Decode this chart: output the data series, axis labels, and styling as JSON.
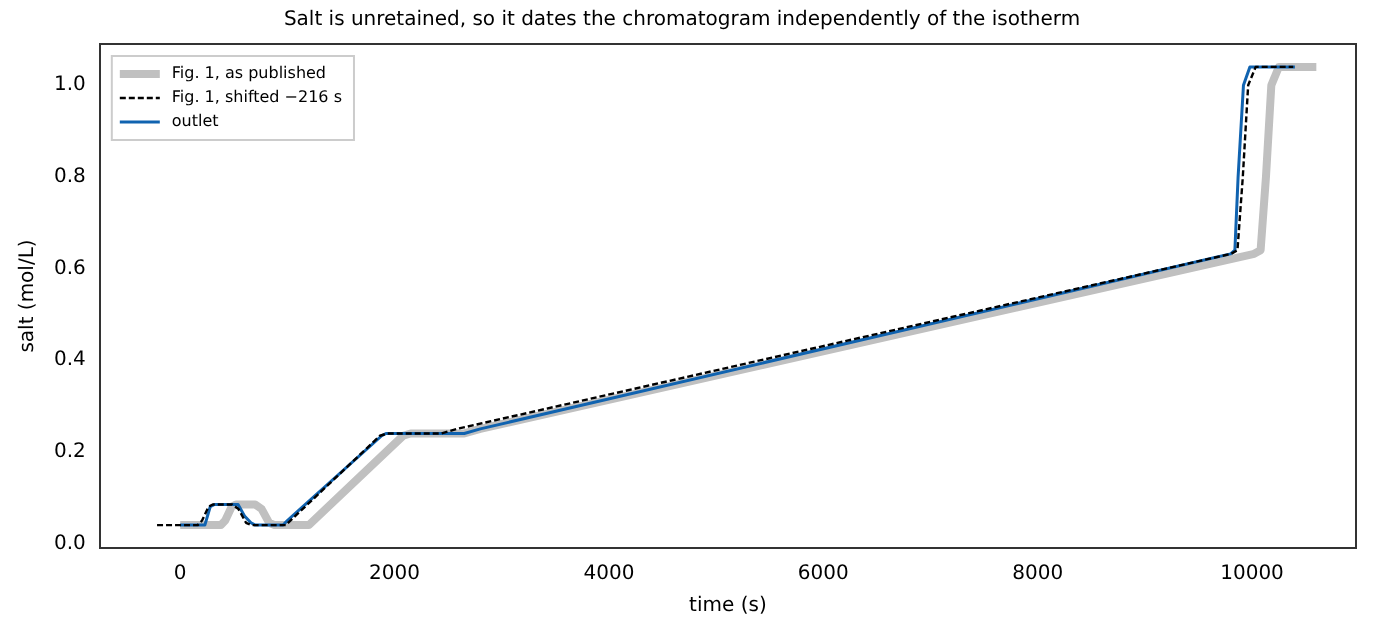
{
  "chart_data": {
    "type": "line",
    "title": "Salt is unretained, so it dates the chromatogram independently of the isotherm",
    "xlabel": "time (s)",
    "ylabel": "salt (mol/L)",
    "xlim": [
      -750,
      10970
    ],
    "xticks": [
      0,
      2000,
      4000,
      6000,
      8000,
      10000
    ],
    "ylim": [
      -0.01,
      1.09
    ],
    "yticks": [
      {
        "value": 0,
        "label": "0.0"
      },
      {
        "value": 0.2,
        "label": "0.2"
      },
      {
        "value": 0.4,
        "label": "0.4"
      },
      {
        "value": 0.6,
        "label": "0.6"
      },
      {
        "value": 0.8,
        "label": "0.8"
      },
      {
        "value": 1,
        "label": "1.0"
      }
    ],
    "grid": false,
    "legend": "top left",
    "marker": "none",
    "series": [
      {
        "name": "Fig. 1, as published",
        "color": "#c0c0c0",
        "line_style": "solid",
        "x": [
          0,
          380,
          420,
          480,
          520,
          700,
          760,
          830,
          880,
          1200,
          2080,
          2150,
          2650,
          2800,
          10020,
          10080,
          10130,
          10180,
          10250,
          10600
        ],
        "values": [
          0.04,
          0.04,
          0.05,
          0.08,
          0.085,
          0.085,
          0.075,
          0.045,
          0.04,
          0.04,
          0.235,
          0.24,
          0.24,
          0.25,
          0.632,
          0.64,
          0.8,
          1.0,
          1.04,
          1.04
        ]
      },
      {
        "name": "Fig. 1, shifted −216 s",
        "color": "#000000",
        "line_style": "dashed",
        "x": [
          -216,
          164,
          204,
          264,
          304,
          484,
          544,
          614,
          664,
          984,
          1864,
          1934,
          2434,
          2584,
          9804,
          9864,
          9914,
          9964,
          10034,
          10384
        ],
        "values": [
          0.04,
          0.04,
          0.05,
          0.08,
          0.085,
          0.085,
          0.075,
          0.045,
          0.04,
          0.04,
          0.235,
          0.24,
          0.24,
          0.25,
          0.632,
          0.64,
          0.8,
          1.0,
          1.04,
          1.04
        ]
      },
      {
        "name": "outlet",
        "color": "#1063b0",
        "line_style": "solid",
        "x": [
          0,
          230,
          280,
          320,
          540,
          600,
          660,
          700,
          960,
          1000,
          1880,
          1920,
          2650,
          2800,
          9800,
          9840,
          9870,
          9920,
          9980,
          10400
        ],
        "values": [
          0.04,
          0.04,
          0.08,
          0.085,
          0.085,
          0.06,
          0.045,
          0.04,
          0.04,
          0.05,
          0.235,
          0.24,
          0.24,
          0.25,
          0.632,
          0.64,
          0.8,
          1.0,
          1.04,
          1.04
        ]
      }
    ]
  }
}
